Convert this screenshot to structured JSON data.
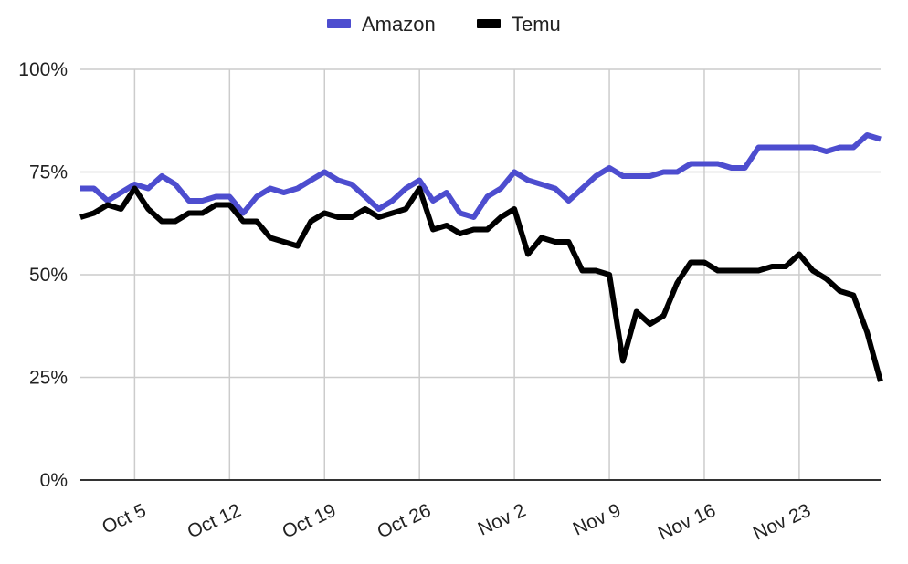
{
  "chart_data": {
    "type": "line",
    "title": "",
    "xlabel": "",
    "ylabel": "",
    "x_start": "Oct 1",
    "x": [
      "Oct 1",
      "Oct 2",
      "Oct 3",
      "Oct 4",
      "Oct 5",
      "Oct 6",
      "Oct 7",
      "Oct 8",
      "Oct 9",
      "Oct 10",
      "Oct 11",
      "Oct 12",
      "Oct 13",
      "Oct 14",
      "Oct 15",
      "Oct 16",
      "Oct 17",
      "Oct 18",
      "Oct 19",
      "Oct 20",
      "Oct 21",
      "Oct 22",
      "Oct 23",
      "Oct 24",
      "Oct 25",
      "Oct 26",
      "Oct 27",
      "Oct 28",
      "Oct 29",
      "Oct 30",
      "Oct 31",
      "Nov 1",
      "Nov 2",
      "Nov 3",
      "Nov 4",
      "Nov 5",
      "Nov 6",
      "Nov 7",
      "Nov 8",
      "Nov 9",
      "Nov 10",
      "Nov 11",
      "Nov 12",
      "Nov 13",
      "Nov 14",
      "Nov 15",
      "Nov 16",
      "Nov 17",
      "Nov 18",
      "Nov 19",
      "Nov 20",
      "Nov 21",
      "Nov 22",
      "Nov 23",
      "Nov 24",
      "Nov 25",
      "Nov 26",
      "Nov 27",
      "Nov 28",
      "Nov 29"
    ],
    "x_ticks": [
      "Oct 5",
      "Oct 12",
      "Oct 19",
      "Oct 26",
      "Nov 2",
      "Nov 9",
      "Nov 16",
      "Nov 23"
    ],
    "y_ticks": [
      "0%",
      "25%",
      "50%",
      "75%",
      "100%"
    ],
    "ylim": [
      0,
      100
    ],
    "grid": true,
    "legend_position": "top-center",
    "series": [
      {
        "name": "Amazon",
        "color": "#4d4dcf",
        "values": [
          71,
          71,
          68,
          70,
          72,
          71,
          74,
          72,
          68,
          68,
          69,
          69,
          65,
          69,
          71,
          70,
          71,
          73,
          75,
          73,
          72,
          69,
          66,
          68,
          71,
          73,
          68,
          70,
          65,
          64,
          69,
          71,
          75,
          73,
          72,
          71,
          68,
          71,
          74,
          76,
          74,
          74,
          74,
          75,
          75,
          77,
          77,
          77,
          76,
          76,
          81,
          81,
          81,
          81,
          81,
          80,
          81,
          81,
          84,
          83
        ]
      },
      {
        "name": "Temu",
        "color": "#000000",
        "values": [
          64,
          65,
          67,
          66,
          71,
          66,
          63,
          63,
          65,
          65,
          67,
          67,
          63,
          63,
          59,
          58,
          57,
          63,
          65,
          64,
          64,
          66,
          64,
          65,
          66,
          71,
          61,
          62,
          60,
          61,
          61,
          64,
          66,
          55,
          59,
          58,
          58,
          51,
          51,
          50,
          29,
          41,
          38,
          40,
          48,
          53,
          53,
          51,
          51,
          51,
          51,
          52,
          52,
          55,
          51,
          49,
          46,
          45,
          36,
          24
        ]
      }
    ]
  }
}
